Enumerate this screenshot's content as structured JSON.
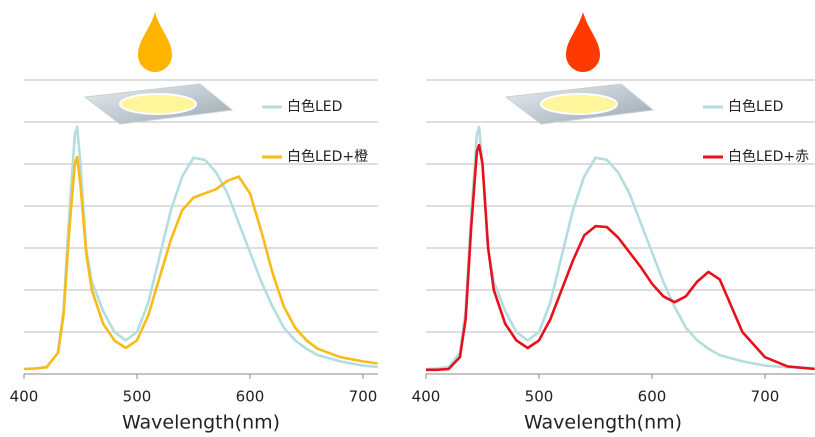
{
  "chart_data": [
    {
      "type": "line",
      "xlabel": "Wavelength(nm)",
      "xlim": [
        400,
        713
      ],
      "xticks": [
        400,
        500,
        600,
        700
      ],
      "ylim": [
        0,
        7
      ],
      "yticks": [
        1,
        2,
        3,
        4,
        5,
        6,
        7
      ],
      "grid": true,
      "ytick_labels": false,
      "legend": "upper right",
      "x": [
        400,
        410,
        420,
        430,
        435,
        440,
        445,
        447,
        450,
        455,
        460,
        470,
        480,
        490,
        500,
        510,
        520,
        530,
        540,
        550,
        560,
        570,
        580,
        590,
        600,
        610,
        620,
        630,
        640,
        650,
        660,
        680,
        700,
        713
      ],
      "series": [
        {
          "name": "白色LED",
          "color": "#b4dde0",
          "values": [
            0.12,
            0.13,
            0.17,
            0.5,
            1.5,
            3.8,
            5.7,
            5.88,
            5.0,
            3.0,
            2.2,
            1.5,
            1.0,
            0.8,
            1.0,
            1.7,
            2.8,
            3.9,
            4.7,
            5.15,
            5.1,
            4.8,
            4.3,
            3.6,
            2.9,
            2.2,
            1.6,
            1.1,
            0.8,
            0.6,
            0.45,
            0.3,
            0.2,
            0.17
          ]
        },
        {
          "name": "白色LED+橙",
          "color": "#f7bb1a",
          "values": [
            0.12,
            0.13,
            0.16,
            0.5,
            1.4,
            3.4,
            5.0,
            5.17,
            4.5,
            2.9,
            2.0,
            1.2,
            0.8,
            0.62,
            0.8,
            1.4,
            2.3,
            3.2,
            3.9,
            4.2,
            4.3,
            4.4,
            4.6,
            4.7,
            4.3,
            3.4,
            2.4,
            1.6,
            1.1,
            0.8,
            0.6,
            0.4,
            0.3,
            0.25
          ]
        }
      ]
    },
    {
      "type": "line",
      "xlabel": "Wavelength(nm)",
      "xlim": [
        400,
        744
      ],
      "xticks": [
        400,
        500,
        600,
        700
      ],
      "ylim": [
        0,
        7
      ],
      "yticks": [
        1,
        2,
        3,
        4,
        5,
        6,
        7
      ],
      "grid": true,
      "ytick_labels": false,
      "legend": "upper right",
      "x": [
        400,
        410,
        420,
        430,
        435,
        440,
        445,
        447,
        450,
        455,
        460,
        470,
        480,
        490,
        500,
        510,
        520,
        530,
        540,
        550,
        560,
        570,
        580,
        590,
        600,
        610,
        620,
        630,
        640,
        650,
        660,
        680,
        700,
        720,
        744
      ],
      "series": [
        {
          "name": "白色LED",
          "color": "#b4dde0",
          "values": [
            0.12,
            0.13,
            0.17,
            0.5,
            1.5,
            3.8,
            5.7,
            5.88,
            5.0,
            3.0,
            2.2,
            1.5,
            1.0,
            0.8,
            1.0,
            1.7,
            2.8,
            3.9,
            4.7,
            5.15,
            5.1,
            4.8,
            4.3,
            3.6,
            2.9,
            2.2,
            1.6,
            1.1,
            0.8,
            0.6,
            0.45,
            0.3,
            0.2,
            0.16,
            0.14
          ]
        },
        {
          "name": "白色LED+赤",
          "color": "#e8101c",
          "values": [
            0.1,
            0.1,
            0.12,
            0.4,
            1.3,
            3.5,
            5.3,
            5.45,
            5.0,
            3.0,
            2.0,
            1.2,
            0.8,
            0.62,
            0.8,
            1.3,
            2.0,
            2.7,
            3.3,
            3.52,
            3.5,
            3.25,
            2.9,
            2.55,
            2.15,
            1.85,
            1.71,
            1.85,
            2.2,
            2.43,
            2.25,
            1.0,
            0.4,
            0.18,
            0.12
          ]
        }
      ]
    }
  ]
}
